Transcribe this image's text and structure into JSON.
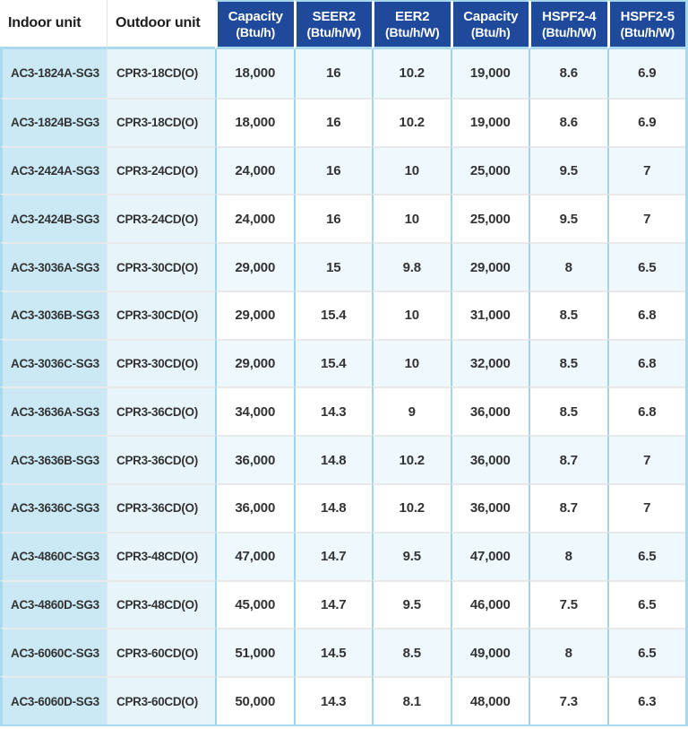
{
  "table": {
    "columns": [
      {
        "id": "indoor-unit",
        "label": "Indoor unit",
        "sub": "",
        "style": "plain"
      },
      {
        "id": "outdoor-unit",
        "label": "Outdoor unit",
        "sub": "",
        "style": "plain"
      },
      {
        "id": "cooling-capacity",
        "label": "Capacity",
        "sub": "(Btu/h)",
        "style": "blue"
      },
      {
        "id": "seer2",
        "label": "SEER2",
        "sub": "(Btu/h/W)",
        "style": "blue"
      },
      {
        "id": "eer2",
        "label": "EER2",
        "sub": "(Btu/h/W)",
        "style": "blue"
      },
      {
        "id": "heating-capacity",
        "label": "Capacity",
        "sub": "(Btu/h)",
        "style": "blue"
      },
      {
        "id": "hspf2-4",
        "label": "HSPF2-4",
        "sub": "(Btu/h/W)",
        "style": "blue"
      },
      {
        "id": "hspf2-5",
        "label": "HSPF2-5",
        "sub": "(Btu/h/W)",
        "style": "blue"
      }
    ],
    "rows": [
      [
        "AC3-1824A-SG3",
        "CPR3-18CD(O)",
        "18,000",
        "16",
        "10.2",
        "19,000",
        "8.6",
        "6.9"
      ],
      [
        "AC3-1824B-SG3",
        "CPR3-18CD(O)",
        "18,000",
        "16",
        "10.2",
        "19,000",
        "8.6",
        "6.9"
      ],
      [
        "AC3-2424A-SG3",
        "CPR3-24CD(O)",
        "24,000",
        "16",
        "10",
        "25,000",
        "9.5",
        "7"
      ],
      [
        "AC3-2424B-SG3",
        "CPR3-24CD(O)",
        "24,000",
        "16",
        "10",
        "25,000",
        "9.5",
        "7"
      ],
      [
        "AC3-3036A-SG3",
        "CPR3-30CD(O)",
        "29,000",
        "15",
        "9.8",
        "29,000",
        "8",
        "6.5"
      ],
      [
        "AC3-3036B-SG3",
        "CPR3-30CD(O)",
        "29,000",
        "15.4",
        "10",
        "31,000",
        "8.5",
        "6.8"
      ],
      [
        "AC3-3036C-SG3",
        "CPR3-30CD(O)",
        "29,000",
        "15.4",
        "10",
        "32,000",
        "8.5",
        "6.8"
      ],
      [
        "AC3-3636A-SG3",
        "CPR3-36CD(O)",
        "34,000",
        "14.3",
        "9",
        "36,000",
        "8.5",
        "6.8"
      ],
      [
        "AC3-3636B-SG3",
        "CPR3-36CD(O)",
        "36,000",
        "14.8",
        "10.2",
        "36,000",
        "8.7",
        "7"
      ],
      [
        "AC3-3636C-SG3",
        "CPR3-36CD(O)",
        "36,000",
        "14.8",
        "10.2",
        "36,000",
        "8.7",
        "7"
      ],
      [
        "AC3-4860C-SG3",
        "CPR3-48CD(O)",
        "47,000",
        "14.7",
        "9.5",
        "47,000",
        "8",
        "6.5"
      ],
      [
        "AC3-4860D-SG3",
        "CPR3-48CD(O)",
        "45,000",
        "14.7",
        "9.5",
        "46,000",
        "7.5",
        "6.5"
      ],
      [
        "AC3-6060C-SG3",
        "CPR3-60CD(O)",
        "51,000",
        "14.5",
        "8.5",
        "49,000",
        "8",
        "6.5"
      ],
      [
        "AC3-6060D-SG3",
        "CPR3-60CD(O)",
        "50,000",
        "14.3",
        "8.1",
        "48,000",
        "7.3",
        "6.3"
      ]
    ]
  },
  "colors": {
    "header_blue": "#1f4a9c",
    "header_text": "#ffffff",
    "plain_header_text": "#1d1d1f",
    "border_blue": "#a9d9ee",
    "sep_blue": "#9ed5ec",
    "row_sep": "#e9e9e9",
    "col1_bg": "#cbe9f5",
    "col2_bg": "#e7f5fb",
    "data_odd_bg": "#eef8fd",
    "data_even_bg": "#ffffff",
    "body_text": "#333333"
  }
}
